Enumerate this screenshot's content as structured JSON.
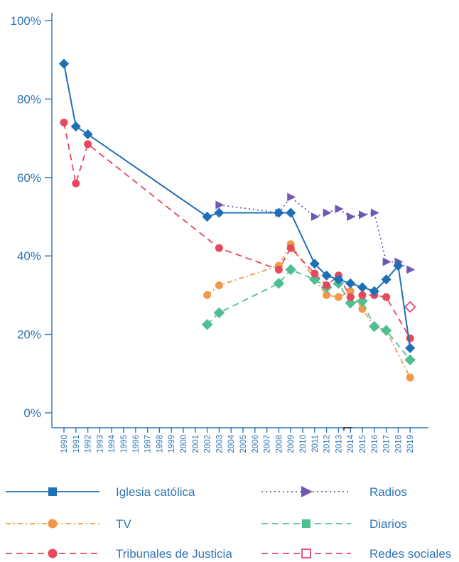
{
  "chart_data": {
    "type": "line",
    "title": "",
    "xlabel": "",
    "ylabel": "",
    "ylim": [
      0,
      100
    ],
    "yticks": [
      "0%",
      "20%",
      "40%",
      "60%",
      "80%",
      "100%"
    ],
    "ytick_values": [
      0,
      20,
      40,
      60,
      80,
      100
    ],
    "categories": [
      "1990",
      "1991",
      "1992",
      "1993",
      "1994",
      "1995",
      "1996",
      "1997",
      "1998",
      "1999",
      "2000",
      "2001",
      "2002",
      "2003",
      "2004",
      "2005",
      "2006",
      "2007",
      "2008",
      "2009",
      "2010",
      "2011",
      "2012",
      "2013",
      "2014",
      "2015",
      "2016",
      "2017",
      "2018",
      "2019"
    ],
    "grid": false,
    "legend_position": "bottom",
    "series": [
      {
        "name": "Iglesia católica",
        "color": "#1f6fb5",
        "line_style": "solid",
        "marker": "square",
        "points": [
          [
            "1990",
            89
          ],
          [
            "1991",
            73
          ],
          [
            "1992",
            71
          ],
          [
            "2002",
            50
          ],
          [
            "2003",
            51
          ],
          [
            "2008",
            51
          ],
          [
            "2009",
            51
          ],
          [
            "2011",
            38
          ],
          [
            "2012",
            35
          ],
          [
            "2013",
            34
          ],
          [
            "2014",
            33
          ],
          [
            "2015",
            32
          ],
          [
            "2016",
            31
          ],
          [
            "2017",
            34
          ],
          [
            "2018",
            37.5
          ],
          [
            "2019",
            16.5
          ]
        ]
      },
      {
        "name": "Radios",
        "color": "#7058b5",
        "line_style": "dotted",
        "marker": "triangle",
        "points": [
          [
            "2003",
            53
          ],
          [
            "2008",
            51
          ],
          [
            "2009",
            55
          ],
          [
            "2011",
            50
          ],
          [
            "2012",
            51
          ],
          [
            "2013",
            52
          ],
          [
            "2014",
            50
          ],
          [
            "2015",
            50.5
          ],
          [
            "2016",
            51
          ],
          [
            "2017",
            38.5
          ],
          [
            "2018",
            38.5
          ],
          [
            "2019",
            36.5
          ]
        ]
      },
      {
        "name": "TV",
        "color": "#f0994a",
        "line_style": "dashdot",
        "marker": "circle",
        "points": [
          [
            "2002",
            30
          ],
          [
            "2003",
            32.5
          ],
          [
            "2008",
            37.5
          ],
          [
            "2009",
            43
          ],
          [
            "2011",
            34
          ],
          [
            "2012",
            30
          ],
          [
            "2013",
            29.5
          ],
          [
            "2014",
            31
          ],
          [
            "2015",
            26.5
          ],
          [
            "2016",
            22
          ],
          [
            "2017",
            21
          ],
          [
            "2019",
            9
          ]
        ]
      },
      {
        "name": "Diarios",
        "color": "#4fbf93",
        "line_style": "dashed",
        "marker": "square",
        "points": [
          [
            "2002",
            22.5
          ],
          [
            "2003",
            25.5
          ],
          [
            "2008",
            33
          ],
          [
            "2009",
            36.5
          ],
          [
            "2011",
            34
          ],
          [
            "2012",
            32
          ],
          [
            "2013",
            33
          ],
          [
            "2014",
            28
          ],
          [
            "2015",
            28.5
          ],
          [
            "2016",
            22
          ],
          [
            "2017",
            21
          ],
          [
            "2019",
            13.5
          ]
        ]
      },
      {
        "name": "Tribunales de Justicia",
        "color": "#e8475c",
        "line_style": "dashed",
        "marker": "circle",
        "points": [
          [
            "1990",
            74
          ],
          [
            "1991",
            58.5
          ],
          [
            "1992",
            68.5
          ],
          [
            "2003",
            42
          ],
          [
            "2008",
            36.5
          ],
          [
            "2009",
            42
          ],
          [
            "2011",
            35.5
          ],
          [
            "2012",
            32.5
          ],
          [
            "2013",
            35
          ],
          [
            "2014",
            29.5
          ],
          [
            "2015",
            30
          ],
          [
            "2016",
            30
          ],
          [
            "2017",
            29.5
          ],
          [
            "2019",
            19
          ]
        ]
      },
      {
        "name": "Redes sociales",
        "color": "#e0457f",
        "line_style": "dashed",
        "marker": "open-square",
        "points": [
          [
            "2019",
            27
          ]
        ]
      }
    ]
  }
}
